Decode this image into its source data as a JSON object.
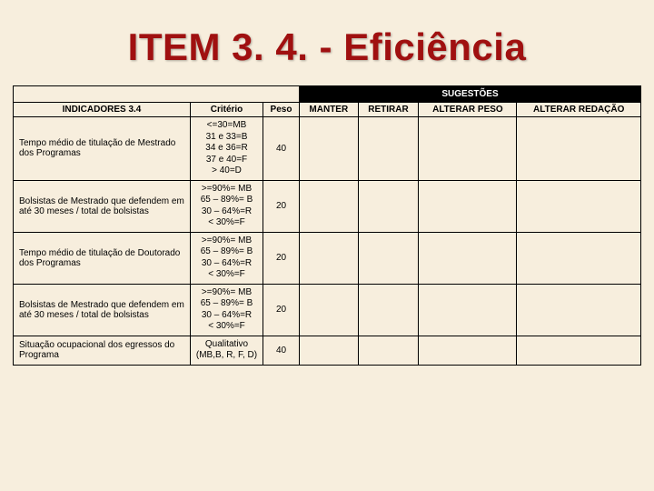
{
  "title": "ITEM 3. 4. - Eficiência",
  "sugestoes_header": "SUGESTÕES",
  "columns": {
    "indicadores": "INDICADORES 3.4",
    "criterio": "Critério",
    "peso": "Peso",
    "manter": "MANTER",
    "retirar": "RETIRAR",
    "alterar_peso": "ALTERAR PESO",
    "alterar_redacao": "ALTERAR REDAÇÃO"
  },
  "rows": [
    {
      "indicador": "Tempo médio de titulação de Mestrado dos Programas",
      "criterio": "<=30=MB\n31 e 33=B\n34 e 36=R\n37 e 40=F\n> 40=D",
      "peso": "40"
    },
    {
      "indicador": "Bolsistas de Mestrado que defendem em até 30 meses / total de bolsistas",
      "criterio": ">=90%= MB\n65 – 89%= B\n30 – 64%=R\n<  30%=F",
      "peso": "20"
    },
    {
      "indicador": "Tempo médio de titulação de Doutorado dos Programas",
      "criterio": ">=90%= MB\n65 – 89%= B\n30 – 64%=R\n<  30%=F",
      "peso": "20"
    },
    {
      "indicador": "Bolsistas de Mestrado que defendem em até 30 meses / total de bolsistas",
      "criterio": ">=90%= MB\n65 – 89%= B\n30 – 64%=R\n<  30%=F",
      "peso": "20"
    },
    {
      "indicador": "Situação ocupacional dos egressos do Programa",
      "criterio": "Qualitativo\n(MB,B, R, F, D)",
      "peso": "40"
    }
  ]
}
